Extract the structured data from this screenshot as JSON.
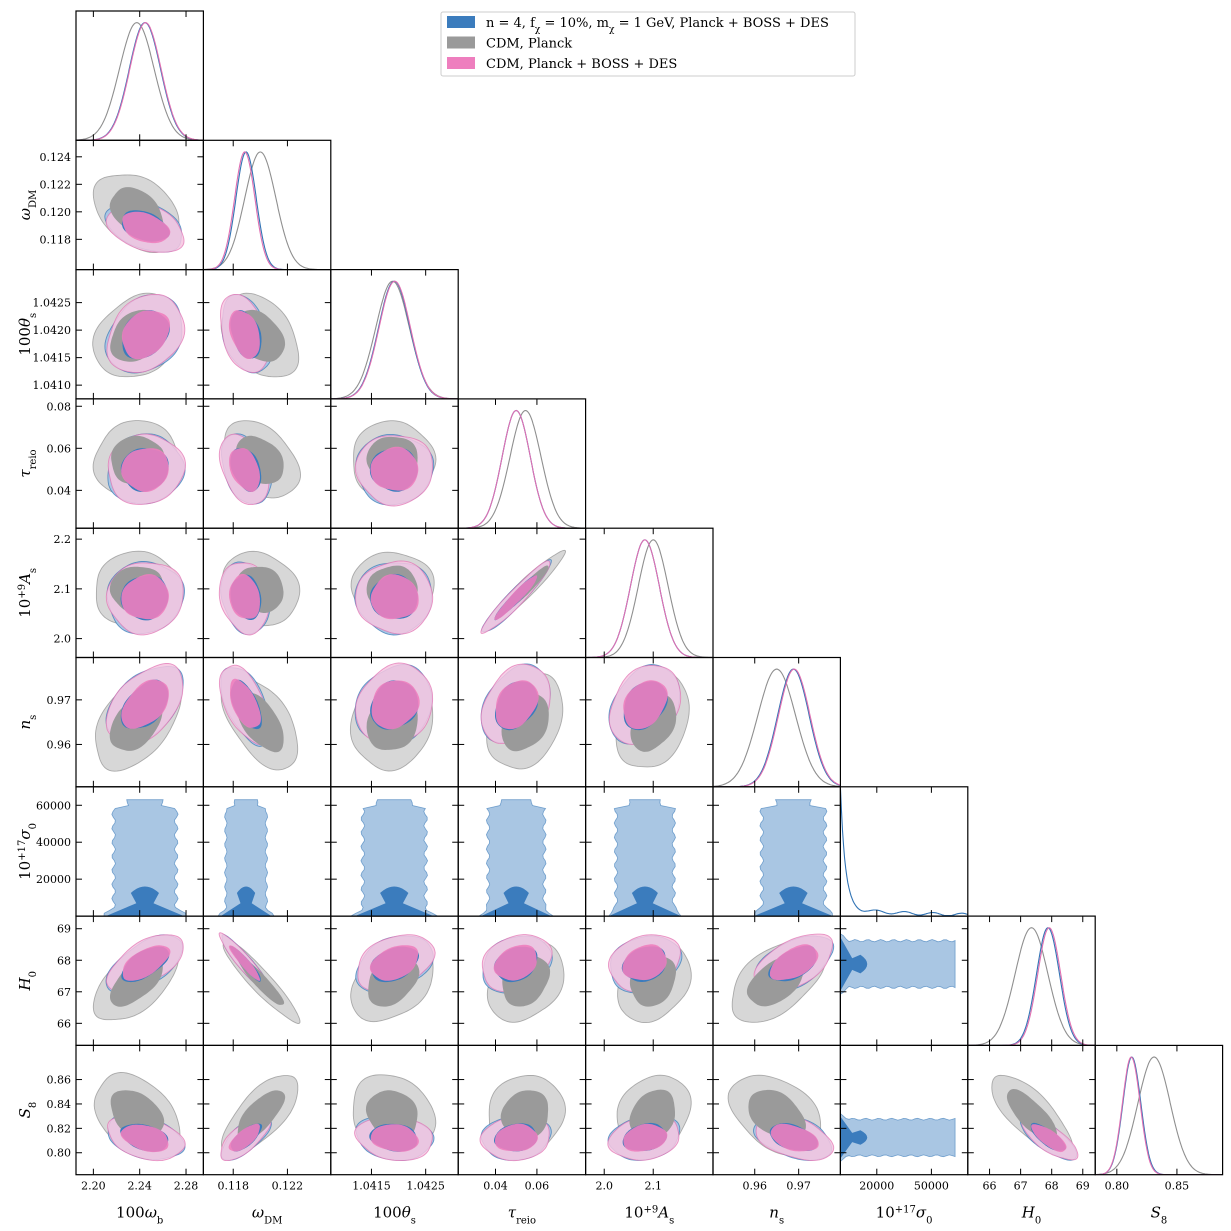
{
  "chart_data": {
    "type": "corner",
    "parameters": [
      {
        "id": "omega_b",
        "label": "100ω",
        "sub": "b",
        "sup": "",
        "range": [
          2.185,
          2.295
        ],
        "ticks": [
          2.2,
          2.24,
          2.28
        ],
        "tick_labels": [
          "2.20",
          "2.24",
          "2.28"
        ]
      },
      {
        "id": "omega_dm",
        "label": "ω",
        "sub": "DM",
        "sup": "",
        "range": [
          0.1158,
          0.1252
        ],
        "ticks": [
          0.118,
          0.12,
          0.122,
          0.124
        ],
        "tick_labels": [
          "0.118",
          "0.120",
          "0.122",
          "0.124"
        ]
      },
      {
        "id": "theta_s",
        "label": "100θ",
        "sub": "s",
        "sup": "",
        "range": [
          1.04075,
          1.0431
        ],
        "ticks": [
          1.041,
          1.0415,
          1.042,
          1.0425
        ],
        "tick_labels": [
          "1.0410",
          "1.0415",
          "1.0420",
          "1.0425"
        ]
      },
      {
        "id": "tau",
        "label": "τ",
        "sub": "reio",
        "sup": "",
        "range": [
          0.022,
          0.0835
        ],
        "ticks": [
          0.04,
          0.06,
          0.08
        ],
        "tick_labels": [
          "0.04",
          "0.06",
          "0.08"
        ]
      },
      {
        "id": "As",
        "label": "10",
        "sub": "s",
        "sup": "+9",
        "tail": "A",
        "range": [
          1.962,
          2.222
        ],
        "ticks": [
          2.0,
          2.1,
          2.2
        ],
        "tick_labels": [
          "2.0",
          "2.1",
          "2.2"
        ]
      },
      {
        "id": "ns",
        "label": "n",
        "sub": "s",
        "sup": "",
        "range": [
          0.9505,
          0.9795
        ],
        "ticks": [
          0.96,
          0.97
        ],
        "tick_labels": [
          "0.96",
          "0.97"
        ]
      },
      {
        "id": "sigma0",
        "label": "10",
        "sub": "0",
        "sup": "+17",
        "tail": "σ",
        "range": [
          0,
          70000
        ],
        "ticks": [
          20000,
          40000,
          60000
        ],
        "tick_labels": [
          "20000",
          "40000",
          "60000"
        ]
      },
      {
        "id": "H0",
        "label": "H",
        "sub": "0",
        "sup": "",
        "range": [
          65.3,
          69.4
        ],
        "ticks": [
          66,
          67,
          68,
          69
        ],
        "tick_labels": [
          "66",
          "67",
          "68",
          "69"
        ]
      },
      {
        "id": "S8",
        "label": "S",
        "sub": "8",
        "sup": "",
        "range": [
          0.782,
          0.888
        ],
        "ticks": [
          0.8,
          0.82,
          0.84,
          0.86
        ],
        "tick_labels": [
          "0.80",
          "0.82",
          "0.84",
          "0.86"
        ]
      }
    ],
    "x_tick_overrides": {
      "sigma0": {
        "ticks": [
          20000,
          50000
        ],
        "tick_labels": [
          "20000",
          "50000"
        ]
      },
      "S8": {
        "ticks": [
          0.8,
          0.85
        ],
        "tick_labels": [
          "0.80",
          "0.85"
        ]
      },
      "theta_s": {
        "ticks": [
          1.0415,
          1.0425
        ],
        "tick_labels": [
          "1.0415",
          "1.0425"
        ]
      },
      "tau": {
        "ticks": [
          0.04,
          0.06
        ],
        "tick_labels": [
          "0.04",
          "0.06"
        ]
      },
      "As": {
        "ticks": [
          2.0,
          2.1
        ],
        "tick_labels": [
          "2.0",
          "2.1"
        ]
      },
      "omega_dm": {
        "ticks": [
          0.118,
          0.122
        ],
        "tick_labels": [
          "0.118",
          "0.122"
        ]
      }
    },
    "series": [
      {
        "id": "dm",
        "name": "n = 4, f_χ = 10%, m_χ = 1 GeV, Planck + BOSS + DES",
        "color": "#3274b5",
        "fill_inner": "#3b7cbd",
        "fill_outer": "#a9c6e3",
        "mean": {
          "omega_b": 2.2445,
          "omega_dm": 0.11895,
          "theta_s": 1.04192,
          "tau": 0.05,
          "As": 2.083,
          "ns": 0.9688,
          "H0": 67.88,
          "S8": 0.8125
        },
        "sd": {
          "omega_b": 0.0135,
          "omega_dm": 0.00075,
          "theta_s": 0.00029,
          "tau": 0.0068,
          "As": 0.0295,
          "ns": 0.0036,
          "H0": 0.37,
          "S8": 0.0075
        }
      },
      {
        "id": "cdm_planck",
        "name": "CDM, Planck",
        "color": "#8f8f8f",
        "fill_inner": "#9a9a9a",
        "fill_outer": "#d7d7d7",
        "mean": {
          "omega_b": 2.2375,
          "omega_dm": 0.12,
          "theta_s": 1.04189,
          "tau": 0.0545,
          "As": 2.1,
          "ns": 0.965,
          "H0": 67.35,
          "S8": 0.831
        },
        "sd": {
          "omega_b": 0.015,
          "omega_dm": 0.00115,
          "theta_s": 0.00031,
          "tau": 0.0075,
          "As": 0.0305,
          "ns": 0.0043,
          "H0": 0.53,
          "S8": 0.0135
        }
      },
      {
        "id": "cdm_all",
        "name": "CDM, Planck + BOSS + DES",
        "color": "#e06fb1",
        "fill_inner": "#ee7ebe",
        "fill_outer": "#f6c5e0",
        "mean": {
          "omega_b": 2.245,
          "omega_dm": 0.11885,
          "theta_s": 1.04193,
          "tau": 0.05,
          "As": 2.083,
          "ns": 0.969,
          "H0": 67.92,
          "S8": 0.812
        },
        "sd": {
          "omega_b": 0.0135,
          "omega_dm": 0.00075,
          "theta_s": 0.00029,
          "tau": 0.0068,
          "As": 0.0295,
          "ns": 0.0036,
          "H0": 0.37,
          "S8": 0.0074
        }
      }
    ],
    "correlations": {
      "omega_b|omega_dm": -0.35,
      "omega_b|theta_s": 0.25,
      "omega_b|tau": 0.05,
      "omega_b|As": 0.05,
      "omega_b|ns": 0.45,
      "omega_b|H0": 0.6,
      "omega_b|S8": -0.35,
      "omega_dm|theta_s": -0.35,
      "omega_dm|tau": -0.35,
      "omega_dm|As": -0.15,
      "omega_dm|ns": -0.55,
      "omega_dm|H0": -0.93,
      "omega_dm|S8": 0.7,
      "theta_s|tau": 0.0,
      "theta_s|As": 0.0,
      "theta_s|ns": 0.15,
      "theta_s|H0": 0.35,
      "theta_s|S8": -0.15,
      "tau|As": 0.95,
      "tau|ns": 0.3,
      "tau|H0": 0.25,
      "tau|S8": 0.1,
      "As|ns": 0.3,
      "As|H0": 0.2,
      "As|S8": 0.2,
      "ns|H0": 0.5,
      "ns|S8": -0.4,
      "H0|S8": -0.75
    },
    "sigma0_limits": {
      "outer_95": 63000,
      "inner_68": 16000
    },
    "legend_position": "top-right",
    "legend_entries": [
      {
        "series": "dm",
        "prefix": "n = 4, f",
        "sub1": "χ",
        "mid": " = 10%, m",
        "sub2": "χ",
        "suffix": " = 1 GeV, Planck + BOSS + DES"
      },
      {
        "series": "cdm_planck",
        "text": "CDM, Planck"
      },
      {
        "series": "cdm_all",
        "text": "CDM, Planck + BOSS + DES"
      }
    ]
  }
}
